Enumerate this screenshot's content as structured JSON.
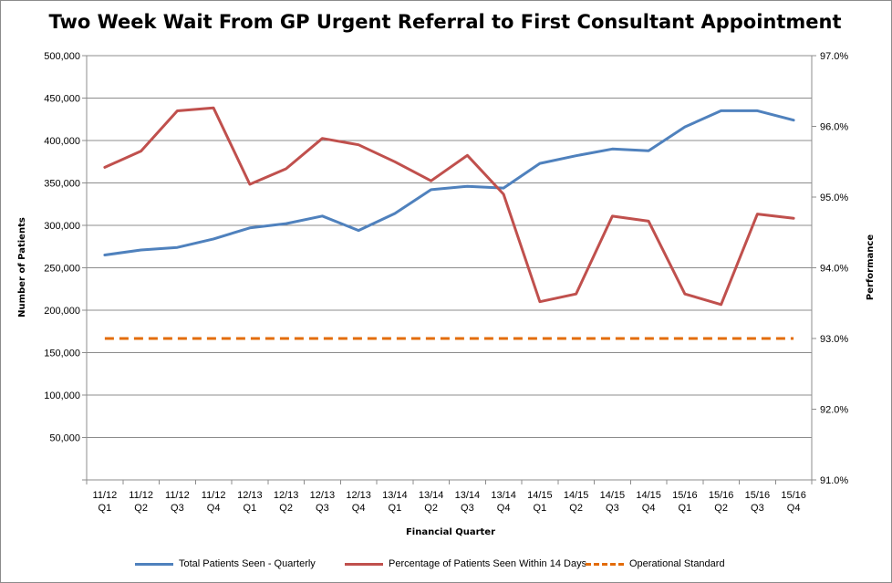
{
  "chart_data": {
    "type": "line",
    "title": "Two Week Wait From GP Urgent Referral to First Consultant Appointment",
    "xlabel": "Financial Quarter",
    "ylabel": "Number of Patients",
    "y2label": "Performance",
    "categories": [
      [
        "11/12",
        "Q1"
      ],
      [
        "11/12",
        "Q2"
      ],
      [
        "11/12",
        "Q3"
      ],
      [
        "11/12",
        "Q4"
      ],
      [
        "12/13",
        "Q1"
      ],
      [
        "12/13",
        "Q2"
      ],
      [
        "12/13",
        "Q3"
      ],
      [
        "12/13",
        "Q4"
      ],
      [
        "13/14",
        "Q1"
      ],
      [
        "13/14",
        "Q2"
      ],
      [
        "13/14",
        "Q3"
      ],
      [
        "13/14",
        "Q4"
      ],
      [
        "14/15",
        "Q1"
      ],
      [
        "14/15",
        "Q2"
      ],
      [
        "14/15",
        "Q3"
      ],
      [
        "14/15",
        "Q4"
      ],
      [
        "15/16",
        "Q1"
      ],
      [
        "15/16",
        "Q2"
      ],
      [
        "15/16",
        "Q3"
      ],
      [
        "15/16",
        "Q4"
      ]
    ],
    "ylim": [
      0,
      500000
    ],
    "y_ticks": [
      "",
      "50,000",
      "100,000",
      "150,000",
      "200,000",
      "250,000",
      "300,000",
      "350,000",
      "400,000",
      "450,000",
      "500,000"
    ],
    "y2lim": [
      91.0,
      97.0
    ],
    "y2_ticks": [
      "91.0%",
      "92.0%",
      "93.0%",
      "94.0%",
      "95.0%",
      "96.0%",
      "97.0%"
    ],
    "grid": "horizontal",
    "legend_position": "bottom",
    "series": [
      {
        "name": "Total Patients Seen - Quarterly",
        "axis": "left",
        "color": "#4f81bd",
        "style": "solid",
        "values": [
          265000,
          271000,
          274000,
          284000,
          297000,
          302000,
          311000,
          294000,
          314000,
          342000,
          346000,
          344000,
          373000,
          382000,
          390000,
          388000,
          416000,
          435000,
          435000,
          424000
        ]
      },
      {
        "name": "Percentage of Patients Seen Within 14 Days",
        "axis": "right",
        "color": "#c0504d",
        "style": "solid",
        "values": [
          95.42,
          95.65,
          96.22,
          96.26,
          95.18,
          95.4,
          95.83,
          95.74,
          95.5,
          95.23,
          95.59,
          95.04,
          93.52,
          93.63,
          94.73,
          94.66,
          93.63,
          93.48,
          94.76,
          94.7
        ]
      },
      {
        "name": "Operational Standard",
        "axis": "right",
        "color": "#e36c09",
        "style": "dashed",
        "values": [
          93.0,
          93.0,
          93.0,
          93.0,
          93.0,
          93.0,
          93.0,
          93.0,
          93.0,
          93.0,
          93.0,
          93.0,
          93.0,
          93.0,
          93.0,
          93.0,
          93.0,
          93.0,
          93.0,
          93.0
        ]
      }
    ]
  }
}
